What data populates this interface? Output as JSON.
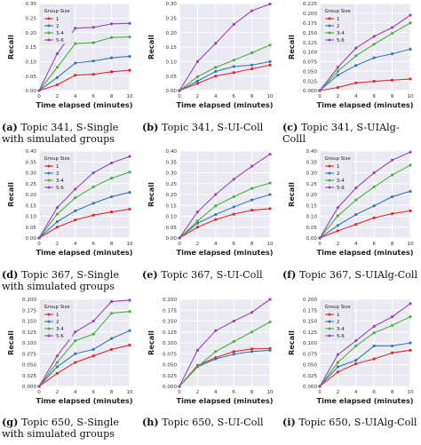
{
  "colors": {
    "1": "#e0282b",
    "2": "#3b78b8",
    "3-4": "#4daf3f",
    "5-6": "#9b46b3"
  },
  "common": {
    "xlabel": "Time elapsed (minutes)",
    "ylabel": "Recall",
    "legend_title": "Group Size",
    "legend_entries": [
      "1",
      "2",
      "3-4",
      "5-6"
    ],
    "x": [
      0,
      2,
      4,
      6,
      8,
      10
    ],
    "xticks": [
      "0",
      "2",
      "4",
      "6",
      "8",
      "10"
    ]
  },
  "captions": [
    {
      "label": "(a)",
      "text": "Topic 341, S-Single with simulated groups"
    },
    {
      "label": "(b)",
      "text": "Topic 341, S-UI-Coll"
    },
    {
      "label": "(c)",
      "text": "Topic 341, S-UIAlg-Colll"
    },
    {
      "label": "(d)",
      "text": "Topic 367, S-Single with simulated groups"
    },
    {
      "label": "(e)",
      "text": "Topic 367, S-UI-Coll"
    },
    {
      "label": "(f)",
      "text": "Topic 367, S-UIAlg-Coll"
    },
    {
      "label": "(g)",
      "text": "Topic 650, S-Single with simulated groups"
    },
    {
      "label": "(h)",
      "text": "Topic 650, S-UI-Coll"
    },
    {
      "label": "(i)",
      "text": "Topic 650, S-UIAlg-Coll"
    }
  ],
  "chart_data": [
    {
      "type": "line",
      "ylim": [
        0,
        0.3
      ],
      "yticks": [
        "0.00",
        "0.05",
        "0.10",
        "0.15",
        "0.20",
        "0.25",
        "0.30"
      ],
      "legend": true,
      "series": [
        {
          "name": "1",
          "values": [
            0,
            0.02,
            0.053,
            0.056,
            0.065,
            0.07
          ]
        },
        {
          "name": "2",
          "values": [
            0,
            0.045,
            0.095,
            0.102,
            0.113,
            0.118
          ]
        },
        {
          "name": "3-4",
          "values": [
            0,
            0.08,
            0.162,
            0.165,
            0.183,
            0.185
          ]
        },
        {
          "name": "5-6",
          "values": [
            0,
            0.127,
            0.215,
            0.218,
            0.23,
            0.232
          ]
        }
      ]
    },
    {
      "type": "line",
      "ylim": [
        0,
        0.3
      ],
      "yticks": [
        "0.00",
        "0.05",
        "0.10",
        "0.15",
        "0.20",
        "0.25",
        "0.30"
      ],
      "legend": false,
      "series": [
        {
          "name": "1",
          "values": [
            0,
            0.025,
            0.05,
            0.062,
            0.075,
            0.088
          ]
        },
        {
          "name": "2",
          "values": [
            0,
            0.033,
            0.066,
            0.083,
            0.088,
            0.1
          ]
        },
        {
          "name": "3-4",
          "values": [
            0,
            0.048,
            0.08,
            0.105,
            0.13,
            0.157
          ]
        },
        {
          "name": "5-6",
          "values": [
            0,
            0.1,
            0.163,
            0.228,
            0.275,
            0.298
          ]
        }
      ]
    },
    {
      "type": "line",
      "ylim": [
        0,
        0.225
      ],
      "yticks": [
        "0.000",
        "0.025",
        "0.050",
        "0.075",
        "0.100",
        "0.125",
        "0.150",
        "0.175",
        "0.200",
        "0.225"
      ],
      "legend": true,
      "series": [
        {
          "name": "1",
          "values": [
            0,
            0.008,
            0.02,
            0.024,
            0.027,
            0.03
          ]
        },
        {
          "name": "2",
          "values": [
            0,
            0.04,
            0.065,
            0.085,
            0.095,
            0.107
          ]
        },
        {
          "name": "3-4",
          "values": [
            0,
            0.05,
            0.09,
            0.12,
            0.148,
            0.175
          ]
        },
        {
          "name": "5-6",
          "values": [
            0,
            0.06,
            0.11,
            0.14,
            0.163,
            0.195
          ]
        }
      ]
    },
    {
      "type": "line",
      "ylim": [
        0,
        0.4
      ],
      "yticks": [
        "0.00",
        "0.05",
        "0.10",
        "0.15",
        "0.20",
        "0.25",
        "0.30",
        "0.35",
        "0.40"
      ],
      "legend": true,
      "series": [
        {
          "name": "1",
          "values": [
            0,
            0.05,
            0.083,
            0.105,
            0.12,
            0.133
          ]
        },
        {
          "name": "2",
          "values": [
            0,
            0.075,
            0.125,
            0.16,
            0.19,
            0.21
          ]
        },
        {
          "name": "3-4",
          "values": [
            0,
            0.11,
            0.185,
            0.235,
            0.275,
            0.303
          ]
        },
        {
          "name": "5-6",
          "values": [
            0,
            0.14,
            0.225,
            0.3,
            0.345,
            0.375
          ]
        }
      ]
    },
    {
      "type": "line",
      "ylim": [
        0,
        0.4
      ],
      "yticks": [
        "0.00",
        "0.05",
        "0.10",
        "0.15",
        "0.20",
        "0.25",
        "0.30",
        "0.35",
        "0.40"
      ],
      "legend": false,
      "series": [
        {
          "name": "1",
          "values": [
            0,
            0.05,
            0.085,
            0.11,
            0.128,
            0.135
          ]
        },
        {
          "name": "2",
          "values": [
            0,
            0.068,
            0.108,
            0.143,
            0.175,
            0.2
          ]
        },
        {
          "name": "3-4",
          "values": [
            0,
            0.078,
            0.148,
            0.19,
            0.228,
            0.253
          ]
        },
        {
          "name": "5-6",
          "values": [
            0,
            0.12,
            0.2,
            0.27,
            0.33,
            0.385
          ]
        }
      ]
    },
    {
      "type": "line",
      "ylim": [
        0,
        0.4
      ],
      "yticks": [
        "0.00",
        "0.05",
        "0.10",
        "0.15",
        "0.20",
        "0.25",
        "0.30",
        "0.35",
        "0.40"
      ],
      "legend": true,
      "series": [
        {
          "name": "1",
          "values": [
            0,
            0.033,
            0.063,
            0.093,
            0.112,
            0.125
          ]
        },
        {
          "name": "2",
          "values": [
            0,
            0.058,
            0.108,
            0.148,
            0.19,
            0.215
          ]
        },
        {
          "name": "3-4",
          "values": [
            0,
            0.102,
            0.175,
            0.235,
            0.29,
            0.335
          ]
        },
        {
          "name": "5-6",
          "values": [
            0,
            0.14,
            0.23,
            0.3,
            0.358,
            0.395
          ]
        }
      ]
    },
    {
      "type": "line",
      "ylim": [
        0,
        0.2
      ],
      "yticks": [
        "0.000",
        "0.025",
        "0.050",
        "0.075",
        "0.100",
        "0.125",
        "0.150",
        "0.175",
        "0.200"
      ],
      "legend": true,
      "series": [
        {
          "name": "1",
          "values": [
            0,
            0.03,
            0.055,
            0.07,
            0.085,
            0.095
          ]
        },
        {
          "name": "2",
          "values": [
            0,
            0.045,
            0.075,
            0.085,
            0.11,
            0.128
          ]
        },
        {
          "name": "3-4",
          "values": [
            0,
            0.055,
            0.105,
            0.12,
            0.168,
            0.172
          ]
        },
        {
          "name": "5-6",
          "values": [
            0,
            0.07,
            0.125,
            0.15,
            0.195,
            0.198
          ]
        }
      ]
    },
    {
      "type": "line",
      "ylim": [
        0,
        0.2
      ],
      "yticks": [
        "0.000",
        "0.025",
        "0.050",
        "0.075",
        "0.100",
        "0.125",
        "0.150",
        "0.175",
        "0.200"
      ],
      "legend": false,
      "series": [
        {
          "name": "1",
          "values": [
            0,
            0.048,
            0.066,
            0.08,
            0.086,
            0.087
          ]
        },
        {
          "name": "2",
          "values": [
            0,
            0.045,
            0.063,
            0.074,
            0.08,
            0.083
          ]
        },
        {
          "name": "3-4",
          "values": [
            0,
            0.045,
            0.08,
            0.103,
            0.125,
            0.148
          ]
        },
        {
          "name": "5-6",
          "values": [
            0,
            0.083,
            0.128,
            0.15,
            0.17,
            0.2
          ]
        }
      ]
    },
    {
      "type": "line",
      "ylim": [
        0,
        0.2
      ],
      "yticks": [
        "0.000",
        "0.025",
        "0.050",
        "0.075",
        "0.100",
        "0.125",
        "0.150",
        "0.175",
        "0.200"
      ],
      "legend": true,
      "series": [
        {
          "name": "1",
          "values": [
            0,
            0.033,
            0.052,
            0.063,
            0.077,
            0.083
          ]
        },
        {
          "name": "2",
          "values": [
            0,
            0.045,
            0.06,
            0.093,
            0.093,
            0.1
          ]
        },
        {
          "name": "3-4",
          "values": [
            0,
            0.055,
            0.093,
            0.123,
            0.14,
            0.16
          ]
        },
        {
          "name": "5-6",
          "values": [
            0,
            0.073,
            0.105,
            0.138,
            0.16,
            0.19
          ]
        }
      ]
    }
  ]
}
